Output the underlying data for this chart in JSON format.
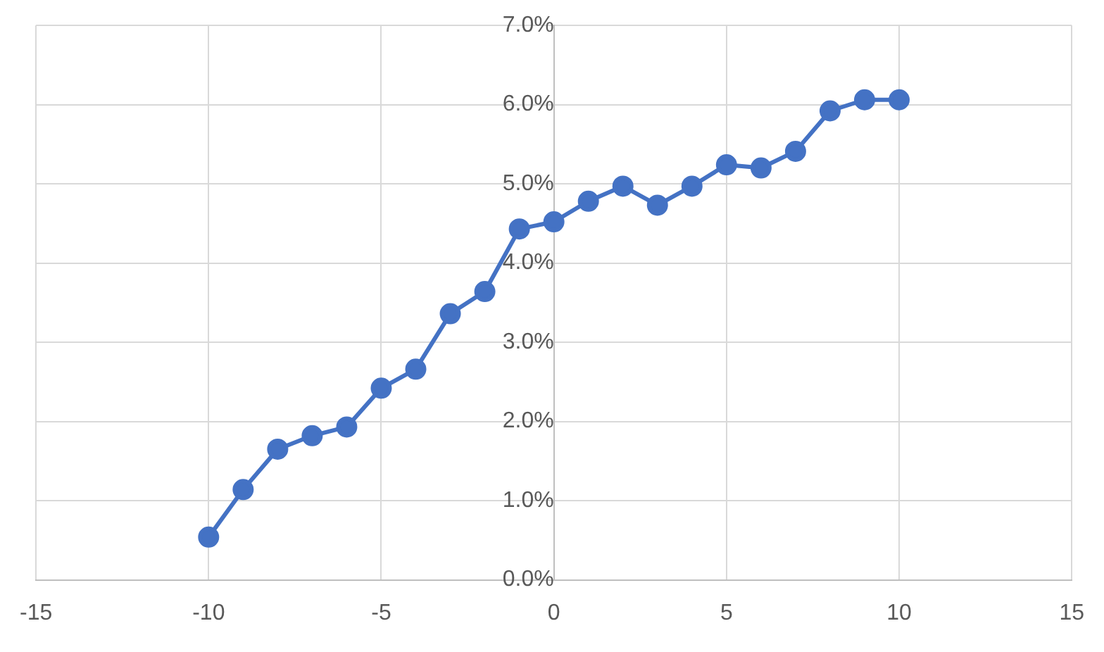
{
  "chart_data": {
    "type": "line",
    "x": [
      -10,
      -9,
      -8,
      -7,
      -6,
      -5,
      -4,
      -3,
      -2,
      -1,
      0,
      1,
      2,
      3,
      4,
      5,
      6,
      7,
      8,
      9,
      10
    ],
    "series": [
      {
        "color": "#4472c4",
        "values": [
          0.54,
          1.14,
          1.65,
          1.82,
          1.93,
          2.42,
          2.66,
          3.36,
          3.64,
          4.43,
          4.52,
          4.78,
          4.97,
          4.73,
          4.97,
          5.24,
          5.2,
          5.41,
          5.92,
          6.06,
          6.06
        ]
      }
    ],
    "xlim": [
      -15,
      15
    ],
    "xticks": [
      -15,
      -10,
      -5,
      0,
      5,
      10,
      15
    ],
    "ylim": [
      0,
      7
    ],
    "yticks": [
      {
        "value": 0,
        "label": "0.0%"
      },
      {
        "value": 1,
        "label": "1.0%"
      },
      {
        "value": 2,
        "label": "2.0%"
      },
      {
        "value": 3,
        "label": "3.0%"
      },
      {
        "value": 4,
        "label": "4.0%"
      },
      {
        "value": 5,
        "label": "5.0%"
      },
      {
        "value": 6,
        "label": "6.0%"
      },
      {
        "value": 7,
        "label": "7.0%"
      }
    ],
    "grid": true,
    "legend": false,
    "marker": "circle",
    "line_style": "solid"
  }
}
